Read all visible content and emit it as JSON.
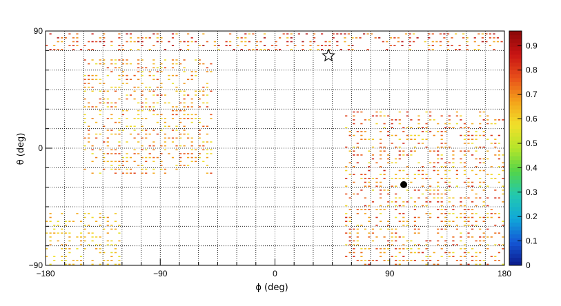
{
  "chart_data": {
    "type": "heatmap",
    "xlabel": "ϕ (deg)",
    "ylabel": "θ (deg)",
    "xlim": [
      -180,
      180
    ],
    "ylim": [
      -90,
      90
    ],
    "x_ticks": [
      {
        "value": -180,
        "label": "−180"
      },
      {
        "value": -90,
        "label": "−90"
      },
      {
        "value": 0,
        "label": "0"
      },
      {
        "value": 90,
        "label": "90"
      },
      {
        "value": 180,
        "label": "180"
      }
    ],
    "y_ticks": [
      {
        "value": -90,
        "label": "−90"
      },
      {
        "value": 0,
        "label": "0"
      },
      {
        "value": 90,
        "label": "90"
      }
    ],
    "grid": true,
    "grid_x_step": 15,
    "grid_y_step": 15,
    "colorbar": {
      "min": 0,
      "max": 0.96,
      "ticks": [
        {
          "value": 0,
          "label": "0"
        },
        {
          "value": 0.1,
          "label": "0.1"
        },
        {
          "value": 0.2,
          "label": "0.2"
        },
        {
          "value": 0.3,
          "label": "0.3"
        },
        {
          "value": 0.4,
          "label": "0.4"
        },
        {
          "value": 0.5,
          "label": "0.5"
        },
        {
          "value": 0.6,
          "label": "0.6"
        },
        {
          "value": 0.7,
          "label": "0.7"
        },
        {
          "value": 0.8,
          "label": "0.8"
        },
        {
          "value": 0.9,
          "label": "0.9"
        }
      ],
      "palette": [
        "#0b1a8a",
        "#1457d6",
        "#10a8d8",
        "#22c8b0",
        "#52d44a",
        "#b4e52a",
        "#f1e02a",
        "#f4a21a",
        "#e8501a",
        "#c81414",
        "#8a0808"
      ]
    },
    "markers": [
      {
        "kind": "star",
        "phi": 42,
        "theta": 71
      },
      {
        "kind": "circle",
        "phi": 101,
        "theta": -28
      }
    ],
    "description_regions": [
      {
        "phi": [
          -180,
          180
        ],
        "theta": [
          75,
          90
        ],
        "value_range": [
          0.6,
          0.92
        ]
      },
      {
        "phi": [
          -150,
          -50
        ],
        "theta": [
          -20,
          70
        ],
        "value_range": [
          0.55,
          0.8
        ]
      },
      {
        "phi": [
          55,
          180
        ],
        "theta": [
          -90,
          30
        ],
        "value_range": [
          0.55,
          0.85
        ]
      },
      {
        "phi": [
          -180,
          -120
        ],
        "theta": [
          -90,
          -50
        ],
        "value_range": [
          0.55,
          0.7
        ]
      }
    ]
  }
}
